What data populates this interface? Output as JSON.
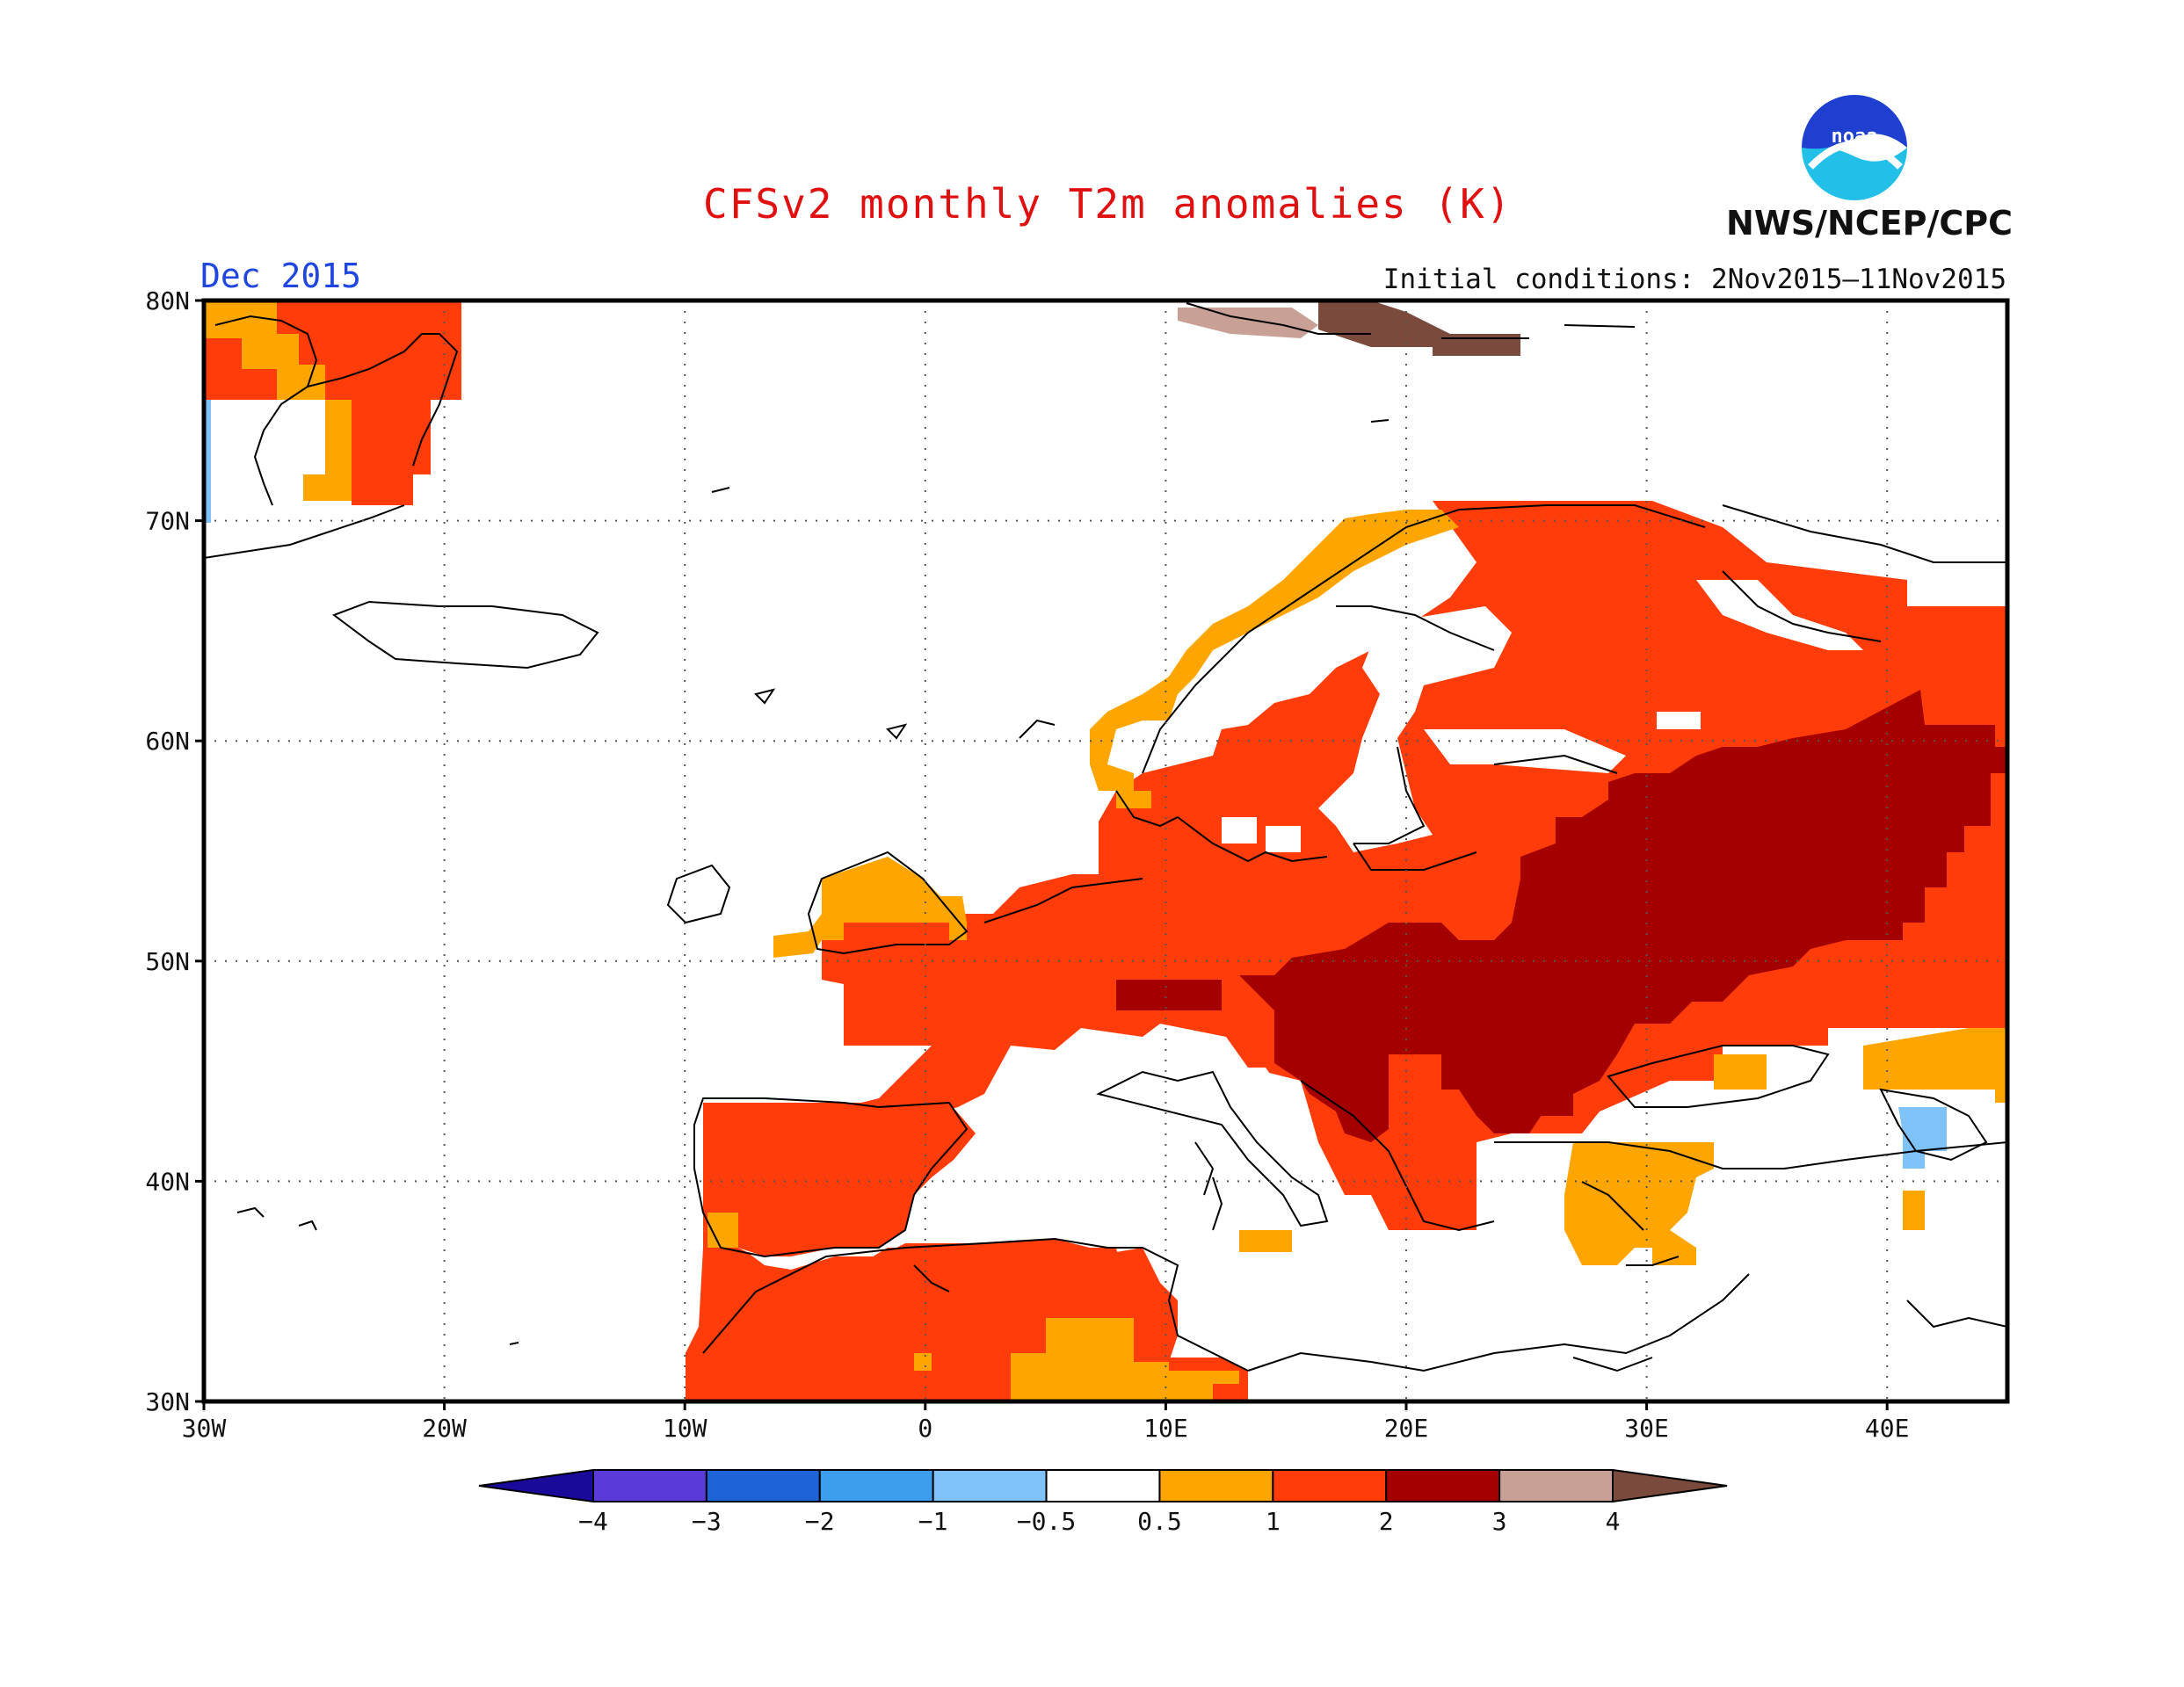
{
  "title": "CFSv2 monthly T2m anomalies (K)",
  "month": "Dec 2015",
  "initial_conditions": "Initial conditions: 2Nov2015–11Nov2015",
  "agency": "NWS/NCEP/CPC",
  "logo": {
    "text": "noaa",
    "icon": "noaa-logo"
  },
  "axes": {
    "lon_labels": [
      "30W",
      "20W",
      "10W",
      "0",
      "10E",
      "20E",
      "30E",
      "40E"
    ],
    "lat_labels": [
      "30N",
      "40N",
      "50N",
      "60N",
      "70N",
      "80N"
    ],
    "lon_range": [
      -30,
      45
    ],
    "lat_range": [
      30,
      80
    ],
    "grid": "dotted"
  },
  "legend": {
    "ticks": [
      "−4",
      "−3",
      "−2",
      "−1",
      "−0.5",
      "0.5",
      "1",
      "2",
      "3",
      "4"
    ],
    "colors": [
      "#1a0a9a",
      "#5a3ad8",
      "#1e64d8",
      "#3d9ef0",
      "#7ec2f8",
      "#ffffff",
      "#ffa500",
      "#ff3c0a",
      "#a50000",
      "#c8a096",
      "#7a4a3c"
    ]
  },
  "anomaly_colors": {
    "0.5-1": "#ffa500",
    "1-2": "#ff3c0a",
    "2-3": "#a50000",
    "3-4": "#c8a096",
    ">4": "#7a4a3c",
    "-1--0.5": "#7ec2f8"
  }
}
